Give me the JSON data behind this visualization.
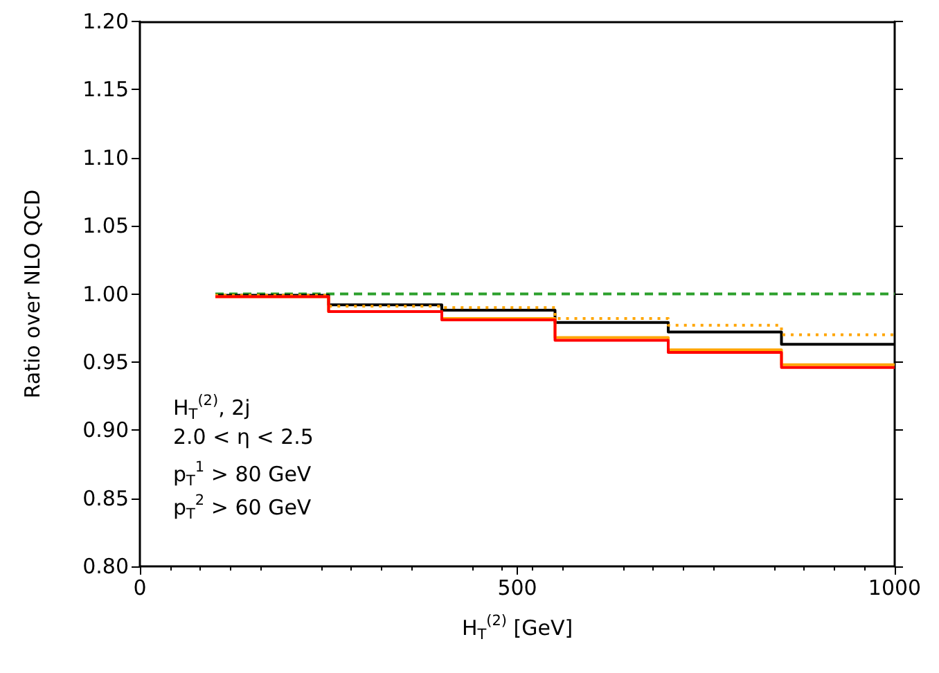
{
  "chart_data": {
    "type": "step",
    "xlabel": "H$_{T}$$^{(2)}$ [GeV]",
    "ylabel": "Ratio over NLO QCD",
    "x": [
      100,
      250,
      400,
      550,
      700,
      850,
      1000
    ],
    "series": [
      {
        "color": "#2ca02c",
        "line_style": "dashed",
        "values": [
          1.0,
          1.0,
          1.0,
          1.0,
          1.0,
          1.0,
          1.0
        ]
      },
      {
        "color": "#000000",
        "line_style": "solid",
        "values": [
          0.999,
          0.992,
          0.988,
          0.979,
          0.972,
          0.963,
          0.963
        ]
      },
      {
        "color": "#ffa500",
        "line_style": "dotted",
        "values": [
          0.999,
          0.991,
          0.99,
          0.982,
          0.977,
          0.97,
          0.97
        ]
      },
      {
        "color": "#ffa500",
        "line_style": "solid",
        "values": [
          0.998,
          0.987,
          0.982,
          0.968,
          0.959,
          0.948,
          0.948
        ]
      },
      {
        "color": "#ff0000",
        "line_style": "solid",
        "values": [
          0.998,
          0.987,
          0.981,
          0.966,
          0.957,
          0.946,
          0.946
        ]
      }
    ],
    "xlim": [
      0,
      1000
    ],
    "xticks": [
      0,
      500,
      1000
    ],
    "ylim": [
      0.8,
      1.2
    ],
    "yticks": [
      {
        "value": 0.8,
        "label": "0.80"
      },
      {
        "value": 0.85,
        "label": "0.85"
      },
      {
        "value": 0.9,
        "label": "0.90"
      },
      {
        "value": 0.95,
        "label": "0.95"
      },
      {
        "value": 1.0,
        "label": "1.00"
      },
      {
        "value": 1.05,
        "label": "1.05"
      },
      {
        "value": 1.1,
        "label": "1.10"
      },
      {
        "value": 1.15,
        "label": "1.15"
      },
      {
        "value": 1.2,
        "label": "1.20"
      }
    ],
    "annotations": [
      "H$_{T}$$^{(2)}$, 2j",
      "2.0 < η < 2.5",
      "p$_{T}$$^{1}$ > 80 GeV",
      "p$_{T}$$^{2}$ > 60 GeV"
    ],
    "grid": false,
    "marker": "none"
  }
}
